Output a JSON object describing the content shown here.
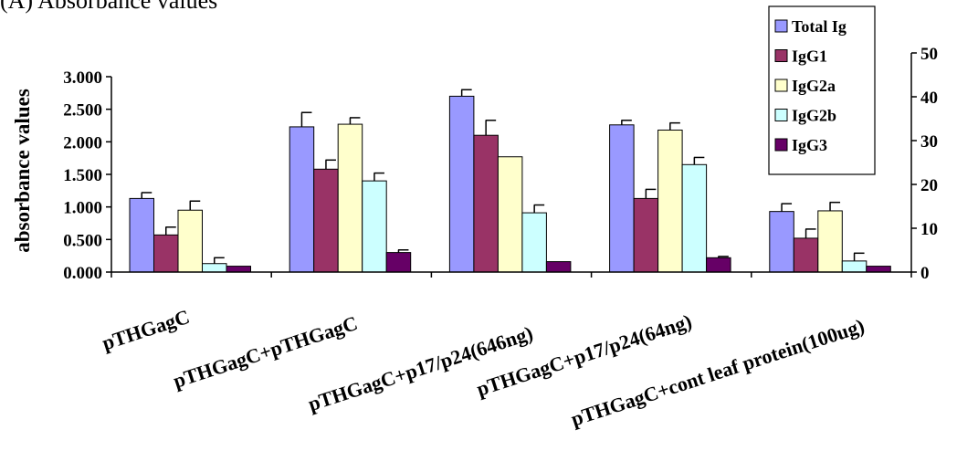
{
  "chart_data": {
    "type": "bar",
    "title": "(A) Absorbance values",
    "xlabel": "",
    "ylabel": "absorbance values",
    "ylim": [
      0,
      3.0
    ],
    "y_ticks": [
      "0.000",
      "0.500",
      "1.000",
      "1.500",
      "2.000",
      "2.500",
      "3.000"
    ],
    "y2lim": [
      0,
      50
    ],
    "y2_ticks": [
      "0",
      "10",
      "20",
      "30",
      "40",
      "50"
    ],
    "legend_position": "top-right",
    "error_bars": true,
    "grid": false,
    "categories": [
      "pTHGagC",
      "pTHGagC+pTHGagC",
      "pTHGagC+p17/p24(646ng)",
      "pTHGagC+p17/p24(64ng)",
      "pTHGagC+cont leaf protein(100ug)"
    ],
    "series": [
      {
        "name": "Total Ig",
        "color": "#9999ff",
        "values": [
          1.13,
          2.23,
          2.7,
          2.26,
          0.93
        ],
        "errors": [
          0.09,
          0.22,
          0.1,
          0.07,
          0.12
        ]
      },
      {
        "name": "IgG1",
        "color": "#993366",
        "values": [
          0.57,
          1.58,
          2.1,
          1.13,
          0.52
        ],
        "errors": [
          0.12,
          0.14,
          0.23,
          0.14,
          0.14
        ]
      },
      {
        "name": "IgG2a",
        "color": "#ffffcc",
        "values": [
          0.95,
          2.27,
          1.77,
          2.18,
          0.94
        ],
        "errors": [
          0.14,
          0.1,
          0.0,
          0.11,
          0.13
        ]
      },
      {
        "name": "IgG2b",
        "color": "#ccffff",
        "values": [
          0.13,
          1.4,
          0.91,
          1.65,
          0.17
        ],
        "errors": [
          0.09,
          0.12,
          0.12,
          0.11,
          0.12
        ]
      },
      {
        "name": "IgG3",
        "color": "#660066",
        "values": [
          0.09,
          0.3,
          0.16,
          0.22,
          0.09
        ],
        "errors": [
          0.0,
          0.04,
          0.0,
          0.02,
          0.0
        ]
      }
    ]
  }
}
